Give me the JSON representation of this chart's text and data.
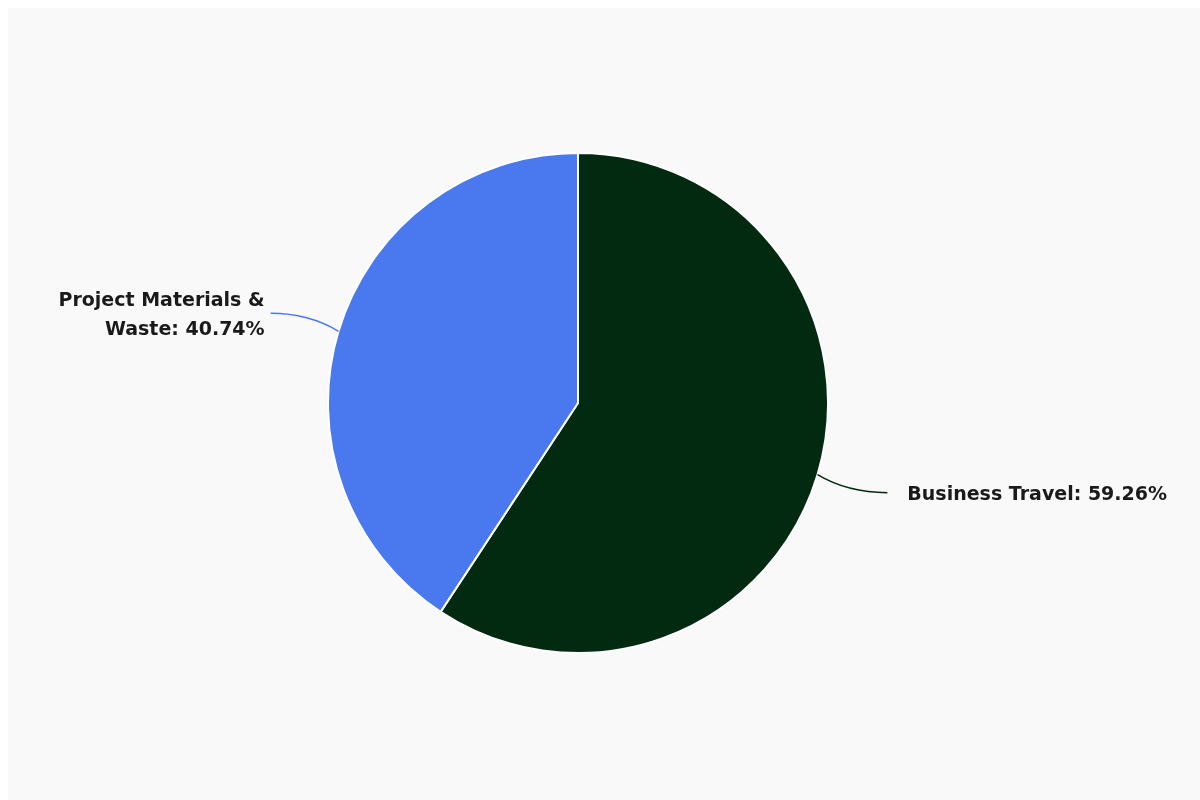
{
  "chart_data": {
    "type": "pie",
    "categories": [
      "Business Travel",
      "Project Materials & Waste"
    ],
    "values": [
      59.26,
      40.74
    ],
    "value_labels": [
      "59.26%",
      "40.74%"
    ],
    "colors": [
      "#022a11",
      "#4a78ee"
    ]
  }
}
